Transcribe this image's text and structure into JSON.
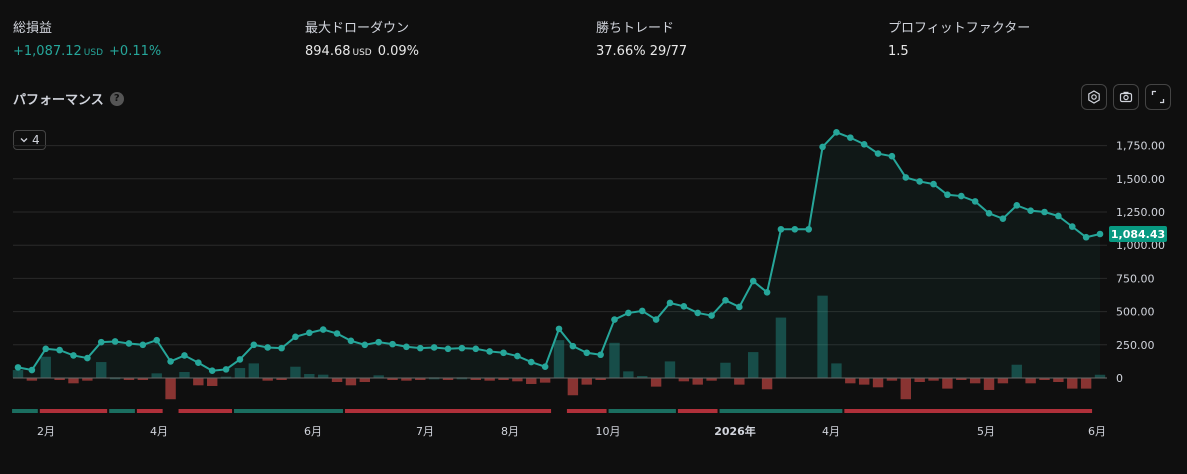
{
  "stats": [
    {
      "label": "総損益",
      "value": "+1,087.12",
      "unit": "USD",
      "extra": "+0.11%",
      "positive": true
    },
    {
      "label": "最大ドローダウン",
      "value": "894.68",
      "unit": "USD",
      "extra": "0.09%",
      "positive": false
    },
    {
      "label": "勝ちトレード",
      "value": "37.66%",
      "unit": "",
      "extra": "29/77",
      "positive": false
    },
    {
      "label": "プロフィットファクター",
      "value": "1.5",
      "unit": "",
      "extra": "",
      "positive": false
    }
  ],
  "performance": {
    "title": "パフォーマンス",
    "help": "?",
    "collapse_label": "4"
  },
  "colors": {
    "line": "#26a69a",
    "up": "#26a69a",
    "down": "#ef5350",
    "badge": "#089981"
  },
  "toolbar_icons": [
    "settings-icon",
    "camera-icon",
    "fullscreen-icon"
  ],
  "chart_data": {
    "type": "line",
    "y_ticks": [
      "1,750.00",
      "1,500.00",
      "1,250.00",
      "1,000.00",
      "750.00",
      "500.00",
      "250.00",
      "0"
    ],
    "ylim": [
      -150,
      1850
    ],
    "x_ticks": [
      "2月",
      "4月",
      "6月",
      "7月",
      "8月",
      "10月",
      "2026年",
      "4月",
      "5月",
      "6月"
    ],
    "last_value_label": "1,084.43",
    "equity": [
      80,
      60,
      220,
      210,
      170,
      150,
      270,
      275,
      260,
      250,
      285,
      125,
      170,
      115,
      55,
      65,
      140,
      250,
      230,
      225,
      310,
      340,
      365,
      335,
      280,
      250,
      270,
      255,
      235,
      225,
      230,
      220,
      225,
      220,
      200,
      190,
      165,
      120,
      85,
      370,
      240,
      190,
      175,
      440,
      490,
      505,
      440,
      565,
      540,
      490,
      470,
      585,
      535,
      730,
      645,
      1120,
      1120,
      1120,
      1740,
      1850,
      1810,
      1760,
      1690,
      1670,
      1510,
      1480,
      1460,
      1380,
      1370,
      1330,
      1240,
      1200,
      1300,
      1260,
      1250,
      1220,
      1140,
      1060,
      1084.43
    ],
    "trade_pnl": [
      60,
      -20,
      160,
      -10,
      -40,
      -20,
      120,
      5,
      -15,
      -10,
      35,
      -160,
      45,
      -55,
      -60,
      10,
      75,
      110,
      -20,
      -5,
      85,
      30,
      25,
      -30,
      -55,
      -30,
      20,
      -15,
      -20,
      -10,
      5,
      -10,
      5,
      -5,
      -20,
      -10,
      -25,
      -45,
      -35,
      285,
      -130,
      -50,
      -15,
      265,
      50,
      15,
      -65,
      125,
      -25,
      -50,
      -20,
      115,
      -50,
      195,
      -85,
      455,
      0,
      0,
      620,
      110,
      -40,
      -50,
      -70,
      -20,
      -160,
      -30,
      -20,
      -80,
      -10,
      -40,
      -90,
      -40,
      100,
      -40,
      -10,
      -30,
      -80,
      -80,
      24.43
    ],
    "streak_segments": [
      {
        "start": 0,
        "end": 2,
        "type": "win"
      },
      {
        "start": 2,
        "end": 7,
        "type": "loss"
      },
      {
        "start": 7,
        "end": 9,
        "type": "win"
      },
      {
        "start": 9,
        "end": 11,
        "type": "loss"
      },
      {
        "start": 12,
        "end": 16,
        "type": "loss"
      },
      {
        "start": 16,
        "end": 24,
        "type": "win"
      },
      {
        "start": 24,
        "end": 39,
        "type": "loss"
      },
      {
        "start": 40,
        "end": 43,
        "type": "loss"
      },
      {
        "start": 43,
        "end": 48,
        "type": "win"
      },
      {
        "start": 48,
        "end": 51,
        "type": "loss"
      },
      {
        "start": 51,
        "end": 60,
        "type": "win"
      },
      {
        "start": 60,
        "end": 78,
        "type": "loss"
      }
    ]
  }
}
